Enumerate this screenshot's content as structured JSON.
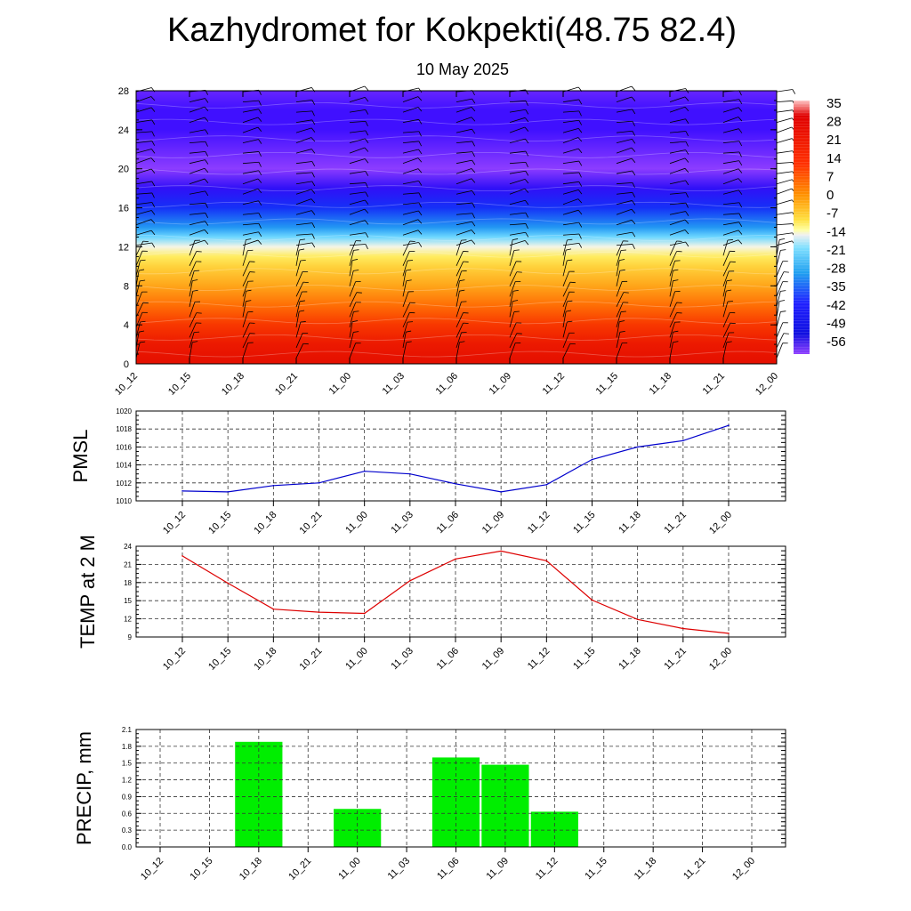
{
  "header": {
    "title": "Kazhydromet for Kokpekti(48.75 82.4)",
    "subtitle": "10 May 2025"
  },
  "chart_data": [
    {
      "type": "heatmap",
      "x_categories": [
        "10_12",
        "10_15",
        "10_18",
        "10_21",
        "11_00",
        "11_03",
        "11_06",
        "11_09",
        "11_12",
        "11_15",
        "11_18",
        "11_21",
        "12_00"
      ],
      "y_ticks": [
        0,
        4,
        8,
        12,
        16,
        20,
        24,
        28
      ],
      "ylim": [
        0,
        28
      ],
      "levels": [
        0,
        2,
        4,
        6,
        8,
        10,
        11,
        12,
        13,
        14,
        16,
        18,
        20,
        22,
        24,
        26,
        28
      ],
      "temperature_by_level": [
        23,
        21,
        17,
        11,
        5,
        -1,
        -5,
        -12,
        -20,
        -30,
        -44,
        -52,
        -58,
        -56,
        -54,
        -54,
        -56
      ],
      "colorbar_labels": [
        "35",
        "28",
        "21",
        "14",
        "7",
        "0",
        "-7",
        "-14",
        "-21",
        "-28",
        "-35",
        "-42",
        "-49",
        "-56"
      ],
      "wind_barbs": true,
      "grid": false
    },
    {
      "type": "line",
      "ylabel": "PMSL",
      "x_categories": [
        "10_12",
        "10_15",
        "10_18",
        "10_21",
        "11_00",
        "11_03",
        "11_06",
        "11_09",
        "11_12",
        "11_15",
        "11_18",
        "11_21",
        "12_00"
      ],
      "y_ticks": [
        "1010",
        "1012",
        "1014",
        "1016",
        "1018",
        "1020"
      ],
      "ylim": [
        1010,
        1020
      ],
      "values": [
        1011.1,
        1011.0,
        1011.7,
        1012.0,
        1013.3,
        1013.0,
        1011.9,
        1011.0,
        1011.8,
        1014.6,
        1016.0,
        1016.7,
        1018.4
      ],
      "color": "#0000cc",
      "grid": true
    },
    {
      "type": "line",
      "ylabel": "TEMP at 2 M",
      "x_categories": [
        "10_12",
        "10_15",
        "10_18",
        "10_21",
        "11_00",
        "11_03",
        "11_06",
        "11_09",
        "11_12",
        "11_15",
        "11_18",
        "11_21",
        "12_00"
      ],
      "y_ticks": [
        "9",
        "12",
        "15",
        "18",
        "21",
        "24"
      ],
      "ylim": [
        9,
        24
      ],
      "values": [
        22.4,
        17.9,
        13.6,
        13.1,
        12.9,
        18.3,
        21.9,
        23.2,
        21.6,
        15.1,
        11.9,
        10.4,
        9.6
      ],
      "color": "#dd0000",
      "grid": true
    },
    {
      "type": "bar",
      "ylabel": "PRECIP, mm",
      "x_categories": [
        "10_12",
        "10_15",
        "10_18",
        "10_21",
        "11_00",
        "11_03",
        "11_06",
        "11_09",
        "11_12",
        "11_15",
        "11_18",
        "11_21",
        "12_00"
      ],
      "y_ticks": [
        "0.0",
        "0.3",
        "0.6",
        "0.9",
        "1.2",
        "1.5",
        "1.8",
        "2.1"
      ],
      "ylim": [
        0,
        2.1
      ],
      "values": [
        0,
        0,
        1.88,
        0,
        0.68,
        0,
        1.6,
        1.47,
        0.63,
        0,
        0,
        0,
        0
      ],
      "color": "#00ee00",
      "grid": true
    }
  ]
}
